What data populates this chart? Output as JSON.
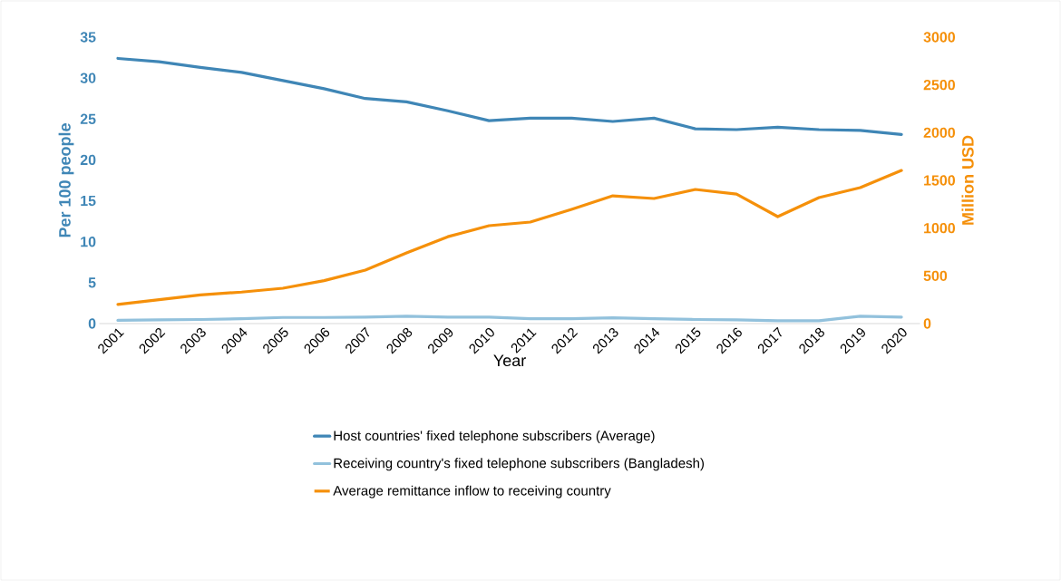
{
  "chart_data": {
    "type": "line",
    "xlabel": "Year",
    "ylabel": "Per 100 people",
    "y2label": "Million USD",
    "categories": [
      "2001",
      "2002",
      "2003",
      "2004",
      "2005",
      "2006",
      "2007",
      "2008",
      "2009",
      "2010",
      "2011",
      "2012",
      "2013",
      "2014",
      "2015",
      "2016",
      "2017",
      "2018",
      "2019",
      "2020"
    ],
    "series": [
      {
        "name": "Host countries' fixed telephone subscribers (Average)",
        "color": "#3f86b6",
        "values": [
          32.4,
          32.0,
          31.3,
          30.7,
          29.7,
          28.7,
          27.5,
          27.1,
          26.0,
          24.8,
          25.1,
          25.1,
          24.7,
          25.1,
          23.8,
          23.7,
          24.0,
          23.7,
          23.6,
          23.1
        ]
      },
      {
        "name": "Receiving country's fixed telephone subscribers (Bangladesh)",
        "color": "#92c1dc",
        "values": [
          0.4,
          0.45,
          0.5,
          0.6,
          0.75,
          0.75,
          0.8,
          0.9,
          0.8,
          0.8,
          0.6,
          0.6,
          0.7,
          0.6,
          0.5,
          0.45,
          0.35,
          0.35,
          0.9,
          0.8
        ]
      },
      {
        "name": "Average remittance inflow to receiving country",
        "color": "#f5900a",
        "axis": "y2",
        "values": [
          200,
          250,
          300,
          330,
          370,
          450,
          560,
          740,
          910,
          1025,
          1063,
          1196,
          1338,
          1310,
          1405,
          1357,
          1120,
          1319,
          1424,
          1604
        ]
      }
    ],
    "ylim": [
      0,
      35
    ],
    "yticks": [
      0,
      5,
      10,
      15,
      20,
      25,
      30,
      35
    ],
    "y2lim": [
      0,
      3000
    ],
    "y2ticks": [
      0,
      500,
      1000,
      1500,
      2000,
      2500,
      3000
    ],
    "legend": "bottom",
    "line_style": "solid"
  }
}
